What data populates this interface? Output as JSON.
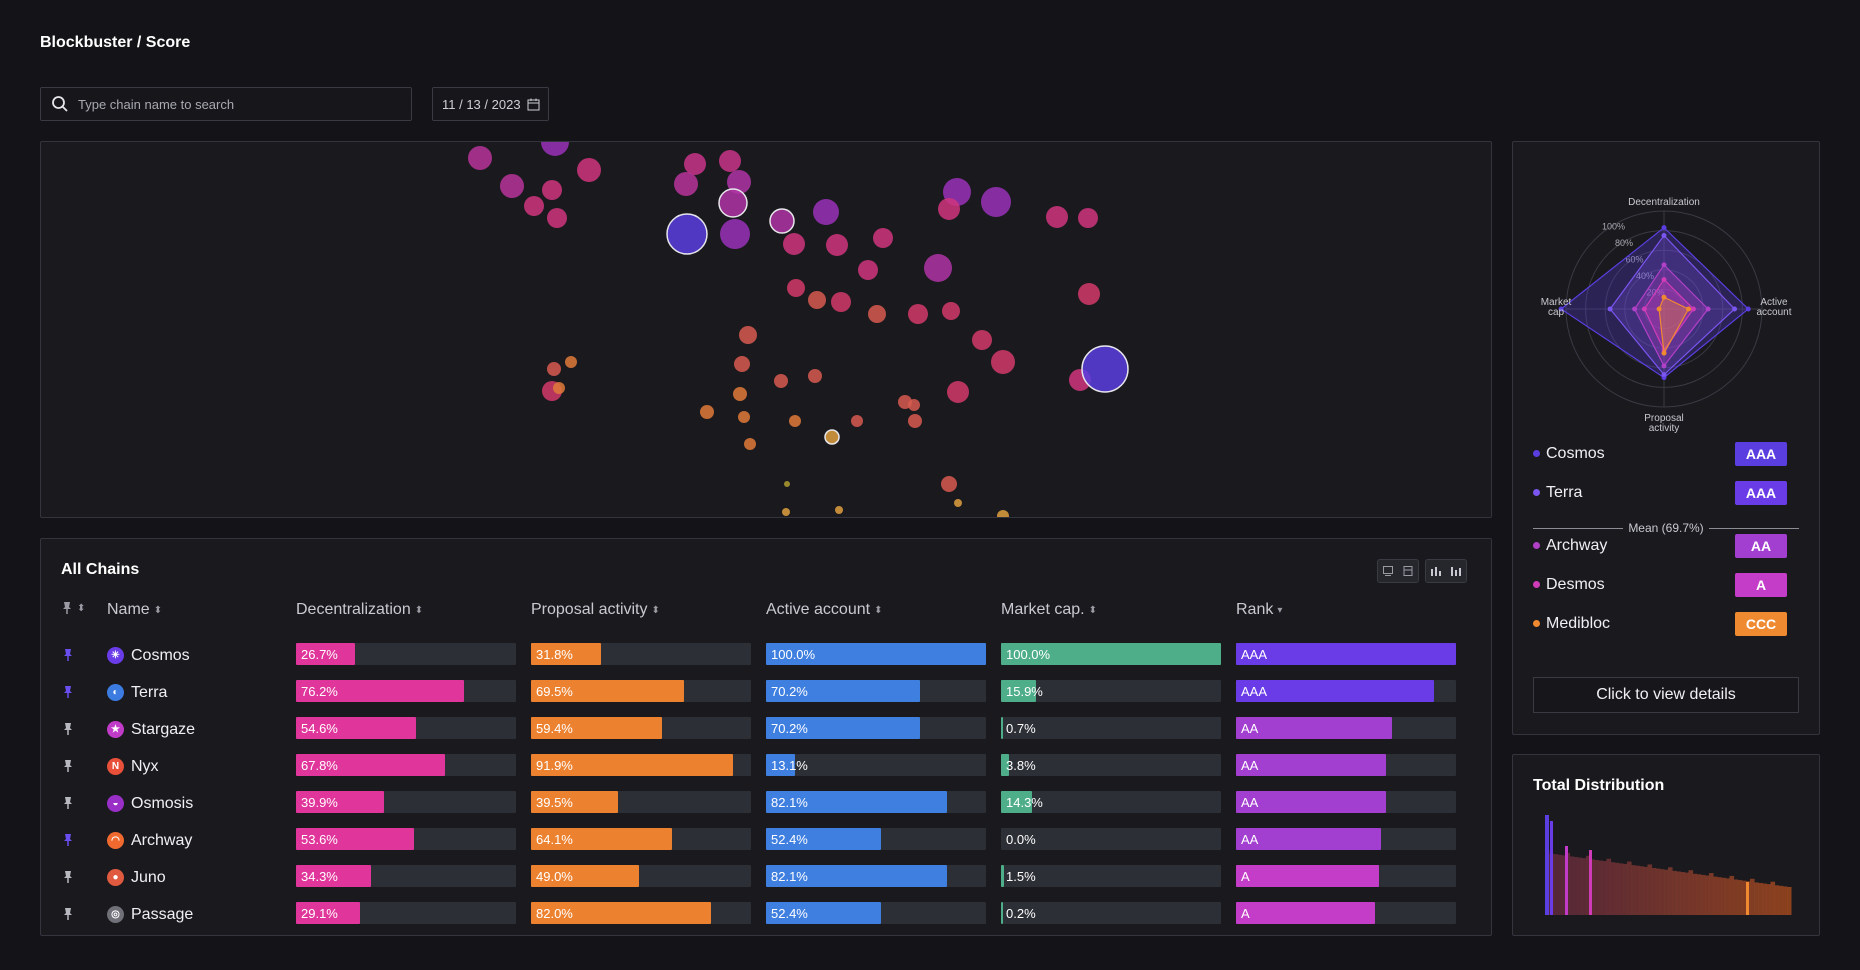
{
  "header": {
    "title": "Blockbuster / Score"
  },
  "search": {
    "placeholder": "Type chain name to search",
    "value": ""
  },
  "date_picker": {
    "value": "11 / 13 / 2023"
  },
  "table": {
    "title": "All Chains",
    "columns": [
      "Name",
      "Decentralization",
      "Proposal activity",
      "Active account",
      "Market cap.",
      "Rank"
    ],
    "rows": [
      {
        "name": "Cosmos",
        "icon": "cosmos-icon",
        "pinned": true,
        "decentralization": "26.7%",
        "proposal": "31.8%",
        "active": "100.0%",
        "market": "100.0%",
        "rank": "AAA"
      },
      {
        "name": "Terra",
        "icon": "terra-icon",
        "pinned": true,
        "decentralization": "76.2%",
        "proposal": "69.5%",
        "active": "70.2%",
        "market": "15.9%",
        "rank": "AAA"
      },
      {
        "name": "Stargaze",
        "icon": "stargaze-icon",
        "pinned": false,
        "decentralization": "54.6%",
        "proposal": "59.4%",
        "active": "70.2%",
        "market": "0.7%",
        "rank": "AA"
      },
      {
        "name": "Nyx",
        "icon": "nyx-icon",
        "pinned": false,
        "decentralization": "67.8%",
        "proposal": "91.9%",
        "active": "13.1%",
        "market": "3.8%",
        "rank": "AA"
      },
      {
        "name": "Osmosis",
        "icon": "osmosis-icon",
        "pinned": false,
        "decentralization": "39.9%",
        "proposal": "39.5%",
        "active": "82.1%",
        "market": "14.3%",
        "rank": "AA"
      },
      {
        "name": "Archway",
        "icon": "archway-icon",
        "pinned": true,
        "decentralization": "53.6%",
        "proposal": "64.1%",
        "active": "52.4%",
        "market": "0.0%",
        "rank": "AA"
      },
      {
        "name": "Juno",
        "icon": "juno-icon",
        "pinned": false,
        "decentralization": "34.3%",
        "proposal": "49.0%",
        "active": "82.1%",
        "market": "1.5%",
        "rank": "A"
      },
      {
        "name": "Passage",
        "icon": "passage-icon",
        "pinned": false,
        "decentralization": "29.1%",
        "proposal": "82.0%",
        "active": "52.4%",
        "market": "0.2%",
        "rank": "A"
      }
    ],
    "rank_fill": {
      "AAA": [
        1.0,
        0.9
      ],
      "AA": [
        0.71,
        0.68,
        0.68,
        0.66
      ],
      "A": [
        0.65,
        0.63
      ]
    }
  },
  "radar": {
    "axes": [
      "Decentralization",
      "Active account",
      "Proposal activity",
      "Market cap"
    ],
    "ring_labels": [
      "20%",
      "40%",
      "60%",
      "80%",
      "100%"
    ],
    "legend_top": [
      {
        "name": "Cosmos",
        "rank": "AAA",
        "color": "#5b3ee0"
      },
      {
        "name": "Terra",
        "rank": "AAA",
        "color": "#7b55f0"
      }
    ],
    "mean_label": "Mean (69.7%)",
    "legend_bottom": [
      {
        "name": "Archway",
        "rank": "AA",
        "color": "#b040c8"
      },
      {
        "name": "Desmos",
        "rank": "A",
        "color": "#d03cb8"
      },
      {
        "name": "Medibloc",
        "rank": "CCC",
        "color": "#f08a30"
      }
    ],
    "details_button": "Click to view details"
  },
  "distribution": {
    "title": "Total Distribution"
  },
  "colors": {
    "decentralization": "#e0359a",
    "proposal": "#ec8230",
    "active": "#3f7fe0",
    "market": "#4fae8a",
    "rank_AAA": "#6a3ce8",
    "rank_AA": "#a23ed0",
    "rank_A": "#c43dc8"
  }
}
